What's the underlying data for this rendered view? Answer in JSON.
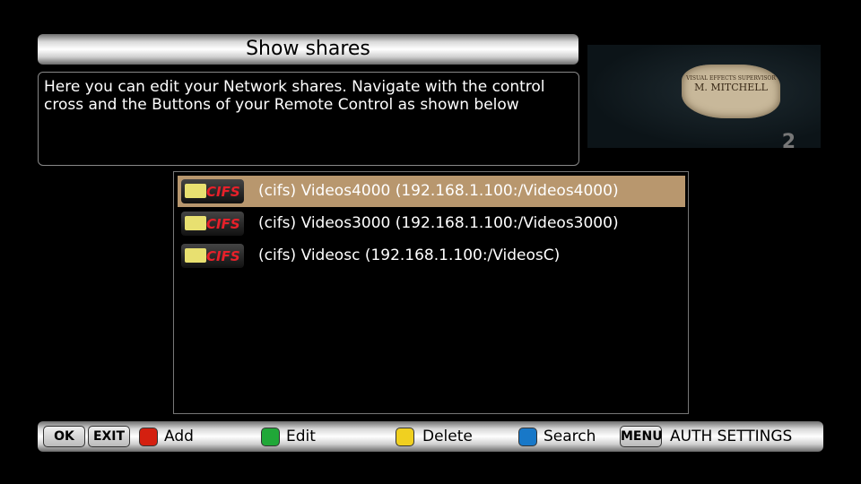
{
  "title": "Show shares",
  "description": "Here you can edit your Network shares. Navigate with the control cross and the Buttons of your Remote Control as shown below",
  "preview": {
    "caption_small": "VISUAL EFFECTS SUPERVISOR",
    "caption_name": "M. MITCHELL",
    "channel_number": "2"
  },
  "shares": [
    {
      "icon": "cifs-folder-icon",
      "icon_text": "CIFS",
      "label": "(cifs) Videos4000 (192.168.1.100:/Videos4000)",
      "selected": true
    },
    {
      "icon": "cifs-folder-icon",
      "icon_text": "CIFS",
      "label": "(cifs) Videos3000 (192.168.1.100:/Videos3000)",
      "selected": false
    },
    {
      "icon": "cifs-folder-icon",
      "icon_text": "CIFS",
      "label": "(cifs) Videosc (192.168.1.100:/VideosC)",
      "selected": false
    }
  ],
  "footer": {
    "ok": "OK",
    "exit": "EXIT",
    "add": "Add",
    "edit": "Edit",
    "delete": "Delete",
    "search": "Search",
    "menu": "MENU",
    "auth": "AUTH SETTINGS"
  },
  "colors": {
    "selected_row": "#b8976e",
    "red": "#d42010",
    "green": "#20a838",
    "yellow": "#f0d020",
    "blue": "#1878c8"
  }
}
